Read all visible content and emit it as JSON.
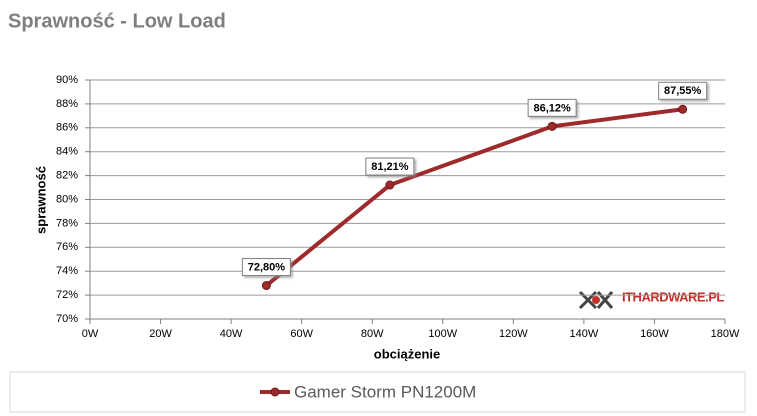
{
  "chart_data": {
    "type": "line",
    "title": "Sprawność - Low Load",
    "xlabel": "obciążenie",
    "ylabel": "sprawność",
    "watermark": "ITHARDWARE.PL",
    "series": [
      {
        "name": "Gamer Storm PN1200M",
        "color": "#9e2a2b",
        "x": [
          50,
          85,
          131,
          168
        ],
        "values": [
          72.8,
          81.21,
          86.12,
          87.55
        ],
        "value_labels": [
          "72,80%",
          "81,21%",
          "86,12%",
          "87,55%"
        ]
      }
    ],
    "xlim": [
      0,
      180
    ],
    "xticks": [
      {
        "value": 0,
        "label": "0W"
      },
      {
        "value": 20,
        "label": "20W"
      },
      {
        "value": 40,
        "label": "40W"
      },
      {
        "value": 60,
        "label": "60W"
      },
      {
        "value": 80,
        "label": "80W"
      },
      {
        "value": 100,
        "label": "100W"
      },
      {
        "value": 120,
        "label": "120W"
      },
      {
        "value": 140,
        "label": "140W"
      },
      {
        "value": 160,
        "label": "160W"
      },
      {
        "value": 180,
        "label": "180W"
      }
    ],
    "ylim": [
      70,
      90
    ],
    "yticks": [
      {
        "value": 70,
        "label": "70%"
      },
      {
        "value": 72,
        "label": "72%"
      },
      {
        "value": 74,
        "label": "74%"
      },
      {
        "value": 76,
        "label": "76%"
      },
      {
        "value": 78,
        "label": "78%"
      },
      {
        "value": 80,
        "label": "80%"
      },
      {
        "value": 82,
        "label": "82%"
      },
      {
        "value": 84,
        "label": "84%"
      },
      {
        "value": 86,
        "label": "86%"
      },
      {
        "value": 88,
        "label": "88%"
      },
      {
        "value": 90,
        "label": "90%"
      }
    ],
    "grid": true,
    "legend": "bottom"
  }
}
